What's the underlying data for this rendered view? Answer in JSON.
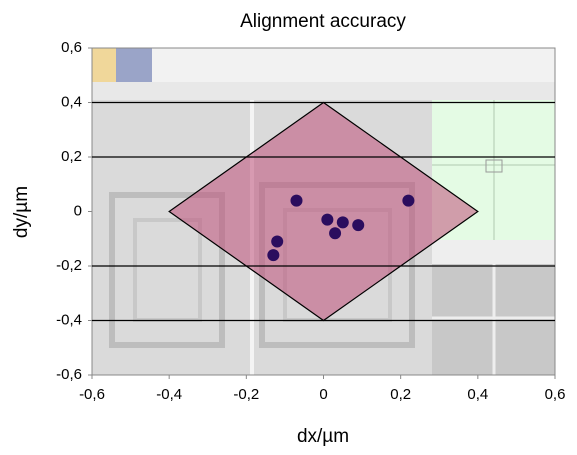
{
  "chart_data": {
    "type": "scatter",
    "title": "Alignment accuracy",
    "x_label": "dx/µm",
    "y_label": "dy/µm",
    "x": [
      -0.07,
      0.22,
      0.01,
      0.05,
      0.09,
      0.03,
      -0.12,
      -0.13
    ],
    "y": [
      0.04,
      0.04,
      -0.03,
      -0.04,
      -0.05,
      -0.08,
      -0.11,
      -0.16
    ],
    "color": "#2b0d5e",
    "region": {
      "x": [
        -0.4,
        0,
        0.4,
        0
      ],
      "y": [
        0,
        0.4,
        0,
        -0.4
      ],
      "color": "#c0507a"
    },
    "hlines": [
      0.4,
      0.2,
      -0.2,
      -0.4
    ],
    "xlim": [
      -0.6,
      0.6
    ],
    "ylim": [
      -0.6,
      0.6
    ],
    "xticks": [
      {
        "value": -0.6,
        "label": "-0,6"
      },
      {
        "value": -0.4,
        "label": "-0,4"
      },
      {
        "value": -0.2,
        "label": "-0,2"
      },
      0,
      {
        "value": 0.2,
        "label": "0,2"
      },
      {
        "value": 0.4,
        "label": "0,4"
      },
      {
        "value": 0.6,
        "label": "0,6"
      }
    ],
    "yticks": [
      {
        "value": -0.6,
        "label": "-0,6"
      },
      {
        "value": -0.4,
        "label": "-0,4"
      },
      {
        "value": -0.2,
        "label": "-0,2"
      },
      0,
      {
        "value": 0.2,
        "label": "0,2"
      },
      {
        "value": 0.4,
        "label": "0,4"
      },
      {
        "value": 0.6,
        "label": "0,6"
      }
    ]
  }
}
